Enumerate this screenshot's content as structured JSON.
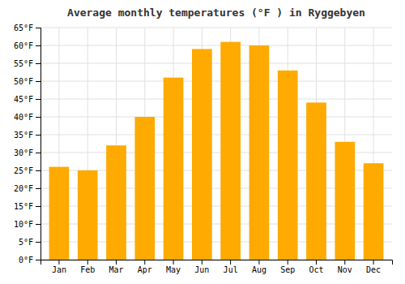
{
  "chart_data": {
    "type": "bar",
    "title": "Average monthly temperatures (°F ) in Ryggebyen",
    "categories": [
      "Jan",
      "Feb",
      "Mar",
      "Apr",
      "May",
      "Jun",
      "Jul",
      "Aug",
      "Sep",
      "Oct",
      "Nov",
      "Dec"
    ],
    "values": [
      26,
      25,
      32,
      40,
      51,
      59,
      61,
      60,
      53,
      44,
      33,
      27
    ],
    "color": "#FFAA00",
    "ylim": [
      0,
      65
    ],
    "yticks": [
      {
        "value": 0,
        "label": "0°F"
      },
      {
        "value": 5,
        "label": "5°F"
      },
      {
        "value": 10,
        "label": "10°F"
      },
      {
        "value": 15,
        "label": "15°F"
      },
      {
        "value": 20,
        "label": "20°F"
      },
      {
        "value": 25,
        "label": "25°F"
      },
      {
        "value": 30,
        "label": "30°F"
      },
      {
        "value": 35,
        "label": "35°F"
      },
      {
        "value": 40,
        "label": "40°F"
      },
      {
        "value": 45,
        "label": "45°F"
      },
      {
        "value": 50,
        "label": "50°F"
      },
      {
        "value": 55,
        "label": "55°F"
      },
      {
        "value": 60,
        "label": "60°F"
      },
      {
        "value": 65,
        "label": "65°F"
      }
    ],
    "grid": true
  }
}
